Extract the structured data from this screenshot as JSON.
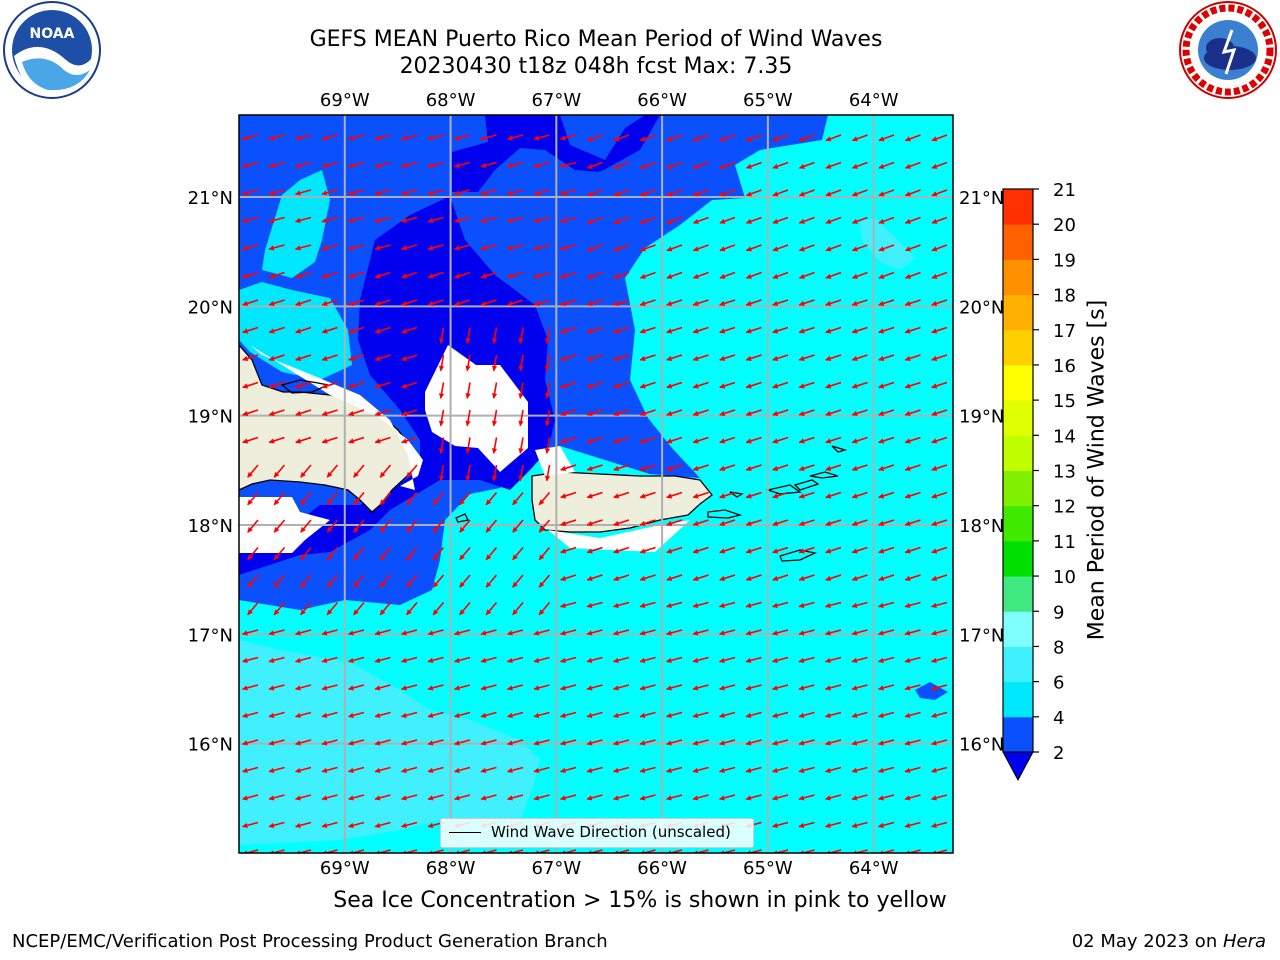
{
  "header": {
    "title_line1": "GEFS MEAN Puerto Rico Mean Period of Wind Waves",
    "title_line2": "20230430 t18z 048h fcst   Max: 7.35"
  },
  "logos": {
    "left": "noaa-logo",
    "right": "national-weather-service-logo"
  },
  "map": {
    "lon_labels": [
      "69°W",
      "68°W",
      "67°W",
      "66°W",
      "65°W",
      "64°W"
    ],
    "lat_labels": [
      "21°N",
      "20°N",
      "19°N",
      "18°N",
      "17°N",
      "16°N"
    ],
    "lon_range": [
      -70.0,
      -63.25
    ],
    "lat_range": [
      15.0,
      21.75
    ],
    "arrow_color": "#ff0000",
    "land_color": "#eeeedd",
    "legend_label": "Wind Wave Direction (unscaled)"
  },
  "colorbar": {
    "label": "Mean Period of Wind Waves [s]",
    "ticks": [
      "2",
      "4",
      "6",
      "8",
      "9",
      "10",
      "11",
      "12",
      "13",
      "14",
      "15",
      "16",
      "17",
      "18",
      "19",
      "20",
      "21"
    ],
    "colors": [
      "#0a50ff",
      "#00e8ff",
      "#40f0ff",
      "#80ffff",
      "#40e880",
      "#00e000",
      "#40ea00",
      "#80f000",
      "#c0ff00",
      "#e0ff00",
      "#ffff00",
      "#ffd000",
      "#ffb000",
      "#ff9000",
      "#ff6000",
      "#ff3000",
      "#ff0000"
    ],
    "under_color": "#0000ee"
  },
  "chart_data": {
    "type": "heatmap",
    "title": "GEFS MEAN Puerto Rico Mean Period of Wind Waves",
    "subtitle": "20230430 t18z 048h fcst   Max: 7.35",
    "colorbar_label": "Mean Period of Wind Waves [s]",
    "max_value": 7.35,
    "levels": [
      2,
      4,
      6,
      8,
      9,
      10,
      11,
      12,
      13,
      14,
      15,
      16,
      17,
      18,
      19,
      20,
      21
    ],
    "xlabel": "",
    "ylabel": ""
  },
  "footer": {
    "note": "Sea Ice Concentration > 15% is shown in pink to yellow",
    "left": "NCEP/EMC/Verification Post Processing Product Generation Branch",
    "right_date": "02 May 2023 on ",
    "right_machine": "Hera"
  }
}
